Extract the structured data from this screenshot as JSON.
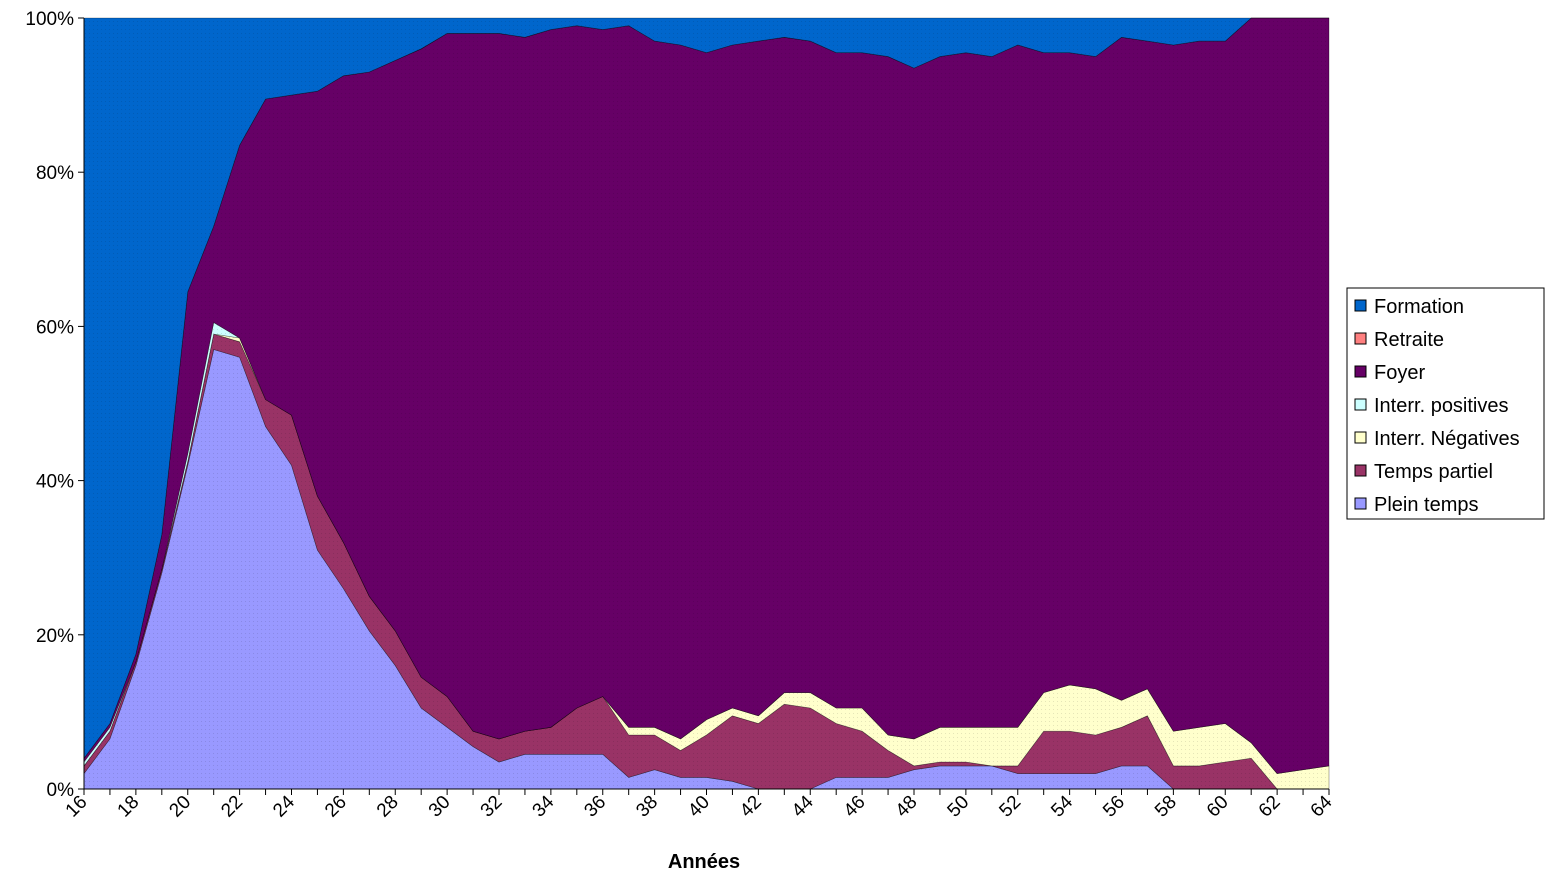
{
  "chart_data": {
    "type": "area",
    "stacked": "percent",
    "xlabel": "Années",
    "ylabel": "",
    "ylim": [
      0,
      100
    ],
    "yticks": [
      "0%",
      "20%",
      "40%",
      "60%",
      "80%",
      "100%"
    ],
    "xticks": [
      "16",
      "18",
      "20",
      "22",
      "24",
      "26",
      "28",
      "30",
      "32",
      "34",
      "36",
      "38",
      "40",
      "42",
      "44",
      "46",
      "48",
      "50",
      "52",
      "54",
      "56",
      "58",
      "60",
      "62",
      "64"
    ],
    "legend_position": "right",
    "x": [
      16,
      17,
      18,
      19,
      20,
      21,
      22,
      23,
      24,
      25,
      26,
      27,
      28,
      29,
      30,
      31,
      32,
      33,
      34,
      35,
      36,
      37,
      38,
      39,
      40,
      41,
      42,
      43,
      44,
      45,
      46,
      47,
      48,
      49,
      50,
      51,
      52,
      53,
      54,
      55,
      56,
      57,
      58,
      59,
      60,
      61,
      62,
      63,
      64
    ],
    "series": [
      {
        "name": "Plein temps",
        "color": "#9999ff",
        "values": [
          2,
          6.5,
          16,
          28,
          42,
          57,
          56,
          47,
          42,
          31,
          26,
          20.5,
          16,
          10.5,
          8,
          5.5,
          3.5,
          4.5,
          4.5,
          4.5,
          4.5,
          1.5,
          2.5,
          1.5,
          1.5,
          1,
          0,
          0,
          0,
          1.5,
          1.5,
          1.5,
          2.5,
          3,
          3,
          3,
          2,
          2,
          2,
          2,
          3,
          3,
          0,
          0,
          0,
          0,
          0,
          0,
          0
        ]
      },
      {
        "name": "Temps partiel",
        "color": "#993366",
        "values": [
          1,
          1,
          0.5,
          0.5,
          0.5,
          2,
          2,
          3.5,
          6.5,
          7,
          6,
          4.5,
          4.5,
          4,
          4,
          2,
          3,
          3,
          3.5,
          6,
          7.5,
          5.5,
          4.5,
          3.5,
          5.5,
          8.5,
          8.5,
          11,
          10.5,
          7,
          6,
          3.5,
          0.5,
          0.5,
          0.5,
          0,
          1,
          5.5,
          5.5,
          5,
          5,
          6.5,
          3,
          3,
          3.5,
          4,
          0,
          0,
          0
        ]
      },
      {
        "name": "Interr. Négatives",
        "color": "#ffffcc",
        "values": [
          0,
          0,
          0,
          0,
          0,
          0,
          0.5,
          0,
          0,
          0,
          0,
          0,
          0,
          0,
          0,
          0,
          0,
          0,
          0,
          0,
          0,
          1,
          1,
          1.5,
          2,
          1,
          1,
          1.5,
          2,
          2,
          3,
          2,
          3.5,
          4.5,
          4.5,
          5,
          5,
          5,
          6,
          6,
          3.5,
          3.5,
          4.5,
          5,
          5,
          2,
          2,
          2.5,
          3
        ]
      },
      {
        "name": "Interr. positives",
        "color": "#ccffff",
        "values": [
          0.5,
          0.5,
          0,
          0,
          1,
          1.5,
          0,
          0,
          0,
          0,
          0,
          0,
          0,
          0,
          0,
          0,
          0,
          0,
          0,
          0,
          0,
          0,
          0,
          0,
          0,
          0,
          0,
          0,
          0,
          0,
          0,
          0,
          0,
          0,
          0,
          0,
          0,
          0,
          0,
          0,
          0,
          0,
          0,
          0,
          0,
          0,
          0,
          0,
          0
        ]
      },
      {
        "name": "Foyer",
        "color": "#660066",
        "values": [
          0.5,
          0.5,
          1,
          4.5,
          21,
          12.5,
          25,
          39,
          41.5,
          52.5,
          60.5,
          68,
          74,
          81.5,
          86,
          90.5,
          91.5,
          90,
          90.5,
          88.5,
          86.5,
          91,
          89,
          90,
          86.5,
          86,
          87.5,
          85,
          84.5,
          85,
          85,
          88,
          87,
          87,
          87.5,
          87,
          88.5,
          83,
          82,
          82,
          86,
          84,
          89,
          89,
          88.5,
          94,
          98,
          97.5,
          97
        ]
      },
      {
        "name": "Retraite",
        "color": "#ff8080",
        "values": [
          0,
          0,
          0,
          0,
          0,
          0,
          0,
          0,
          0,
          0,
          0,
          0,
          0,
          0,
          0,
          0,
          0,
          0,
          0,
          0,
          0,
          0,
          0,
          0,
          0,
          0,
          0,
          0,
          0,
          0,
          0,
          0,
          0,
          0,
          0,
          0,
          0,
          0,
          0,
          0,
          0,
          0,
          0,
          0,
          0,
          0,
          0,
          0,
          0
        ]
      },
      {
        "name": "Formation",
        "color": "#0066cc",
        "values": [
          96,
          91.5,
          82.5,
          67,
          35.5,
          27,
          16.5,
          10.5,
          10,
          9.5,
          7.5,
          7,
          5.5,
          4,
          2,
          2,
          2,
          2.5,
          1.5,
          1,
          1.5,
          1.5,
          3,
          3.5,
          4.5,
          3.5,
          3,
          2.5,
          3,
          4.5,
          4.5,
          5,
          6.5,
          5,
          4.5,
          5,
          3.5,
          4.5,
          4.5,
          5,
          2.5,
          3,
          3.5,
          3,
          3,
          0,
          0,
          0,
          0
        ]
      }
    ],
    "legend_order": [
      "Formation",
      "Retraite",
      "Foyer",
      "Interr. positives",
      "Interr. Négatives",
      "Temps partiel",
      "Plein temps"
    ]
  }
}
